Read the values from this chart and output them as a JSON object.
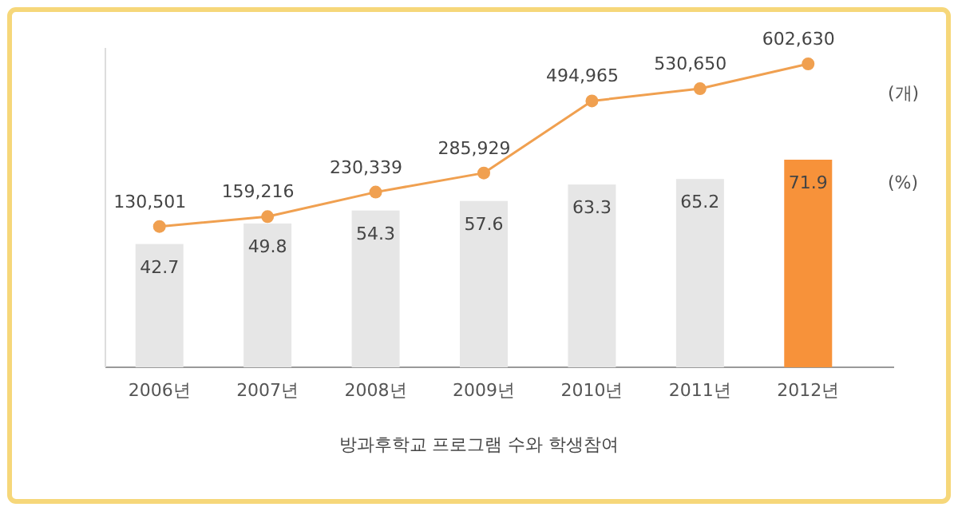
{
  "chart_data": {
    "type": "bar",
    "title": "방과후학교 프로그램 수와 학생참여",
    "ylabel": "(%)",
    "y2label": "(개)",
    "categories": [
      "2006년",
      "2007년",
      "2008년",
      "2009년",
      "2010년",
      "2011년",
      "2012년"
    ],
    "data_labels": true,
    "grid": false,
    "series": [
      {
        "colors": [
          "#e6e6e6",
          "#e6e6e6",
          "#e6e6e6",
          "#e6e6e6",
          "#e6e6e6",
          "#e6e6e6",
          "#f7923a"
        ],
        "values": [
          42.7,
          49.8,
          54.3,
          57.6,
          63.3,
          65.2,
          71.9
        ]
      },
      {
        "type": "line",
        "axis": "y2",
        "color": "#f0a050",
        "marker": "circle",
        "values": [
          130501,
          159216,
          230339,
          285929,
          494965,
          530650,
          602630
        ],
        "value_labels": [
          "130,501",
          "159,216",
          "230,339",
          "285,929",
          "494,965",
          "530,650",
          "602,630"
        ]
      }
    ]
  }
}
